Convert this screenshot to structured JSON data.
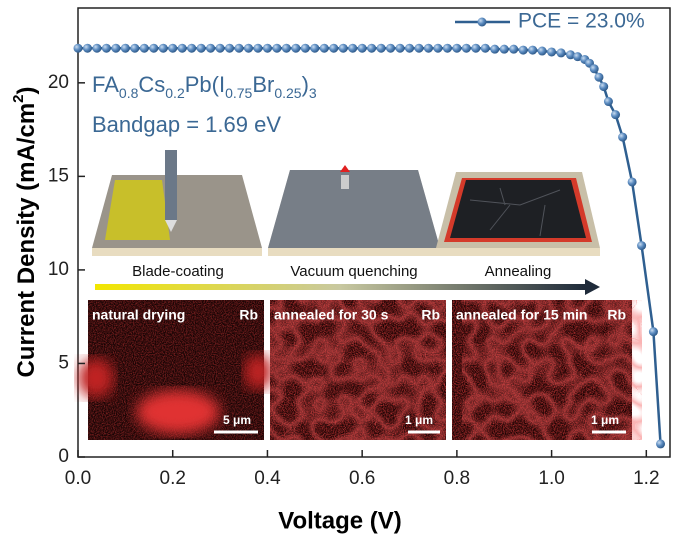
{
  "chart_data": {
    "type": "line",
    "xlabel": "Voltage (V)",
    "ylabel": [
      "Current Density (mA/cm",
      "2",
      ")"
    ],
    "xlim": [
      0,
      1.25
    ],
    "ylim": [
      0,
      24
    ],
    "xticks": [
      {
        "value": 0,
        "label": "0.0"
      },
      0.2,
      0.4,
      0.6,
      0.8,
      {
        "value": 1,
        "label": "1.0"
      },
      1.2
    ],
    "yticks": [
      0,
      5,
      10,
      15,
      20
    ],
    "legend": "upper right",
    "series": [
      {
        "name": "PCE = 23.0%",
        "color": "#2f5f90",
        "x": [
          0,
          0.02,
          0.04,
          0.06,
          0.08,
          0.1,
          0.12,
          0.14,
          0.16,
          0.18,
          0.2,
          0.22,
          0.24,
          0.26,
          0.28,
          0.3,
          0.32,
          0.34,
          0.36,
          0.38,
          0.4,
          0.42,
          0.44,
          0.46,
          0.48,
          0.5,
          0.52,
          0.54,
          0.56,
          0.58,
          0.6,
          0.62,
          0.64,
          0.66,
          0.68,
          0.7,
          0.72,
          0.74,
          0.76,
          0.78,
          0.8,
          0.82,
          0.84,
          0.86,
          0.88,
          0.9,
          0.92,
          0.94,
          0.96,
          0.98,
          1.0,
          1.02,
          1.04,
          1.055,
          1.07,
          1.08,
          1.09,
          1.1,
          1.11,
          1.12,
          1.135,
          1.15,
          1.17,
          1.19,
          1.215,
          1.23
        ],
        "values": [
          21.85,
          21.85,
          21.85,
          21.85,
          21.85,
          21.85,
          21.85,
          21.85,
          21.85,
          21.85,
          21.85,
          21.85,
          21.85,
          21.85,
          21.85,
          21.85,
          21.85,
          21.85,
          21.85,
          21.85,
          21.85,
          21.85,
          21.85,
          21.85,
          21.85,
          21.85,
          21.85,
          21.85,
          21.85,
          21.85,
          21.85,
          21.85,
          21.85,
          21.85,
          21.85,
          21.85,
          21.85,
          21.85,
          21.85,
          21.85,
          21.85,
          21.85,
          21.85,
          21.85,
          21.8,
          21.8,
          21.8,
          21.75,
          21.75,
          21.7,
          21.65,
          21.6,
          21.5,
          21.4,
          21.25,
          21.05,
          20.75,
          20.3,
          19.8,
          19.0,
          18.3,
          17.1,
          14.7,
          11.3,
          6.7,
          0.7
        ]
      }
    ],
    "annotations": {
      "formula": [
        {
          "text": "FA",
          "sub": "0.8"
        },
        {
          "text": "Cs",
          "sub": "0.2"
        },
        {
          "text": "Pb(I",
          "sub": "0.75"
        },
        {
          "text": "Br",
          "sub": "0.25"
        },
        {
          "text": ")",
          "sub": "3"
        }
      ],
      "bandgap": "Bandgap = 1.69 eV",
      "steps": [
        "Blade-coating",
        "Vacuum quenching",
        "Annealing"
      ],
      "maps": [
        {
          "label": "natural drying",
          "element": "Rb",
          "scale": "5 μm"
        },
        {
          "label": "annealed for 30 s",
          "element": "Rb",
          "scale": "1 μm"
        },
        {
          "label": "annealed for 15 min",
          "element": "Rb",
          "scale": "1 μm"
        }
      ]
    }
  }
}
